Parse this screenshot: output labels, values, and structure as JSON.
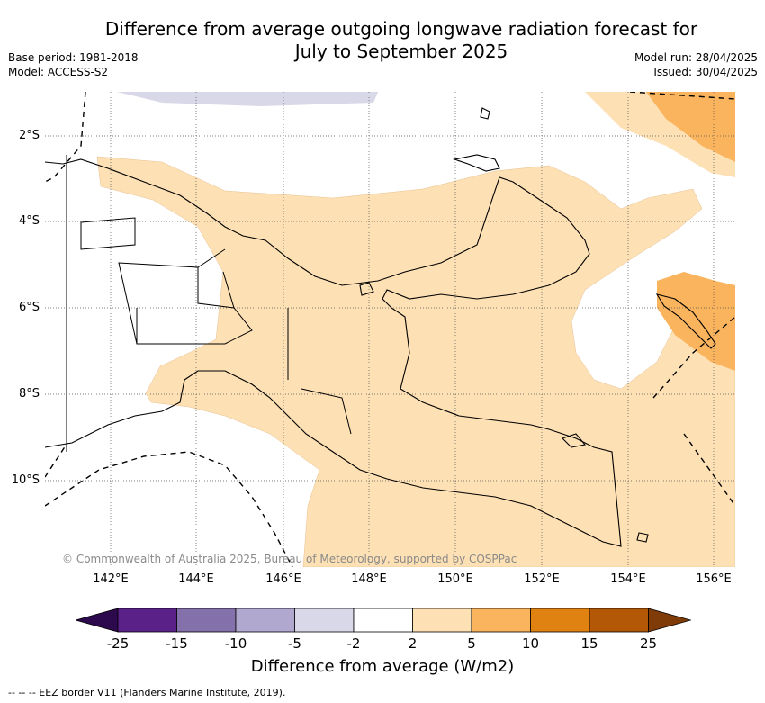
{
  "header": {
    "title_line1": "Difference from average outgoing longwave radiation forecast for",
    "title_line2": "July to September 2025",
    "base_period": "Base period: 1981-2018",
    "model": "Model: ACCESS-S2",
    "model_run": "Model run: 28/04/2025",
    "issued": "Issued: 30/04/2025"
  },
  "map": {
    "lat_labels": [
      "2°S",
      "4°S",
      "6°S",
      "8°S",
      "10°S"
    ],
    "lon_labels": [
      "142°E",
      "144°E",
      "146°E",
      "148°E",
      "150°E",
      "152°E",
      "154°E",
      "156°E"
    ],
    "copyright": "© Commonwealth of Australia 2025, Bureau of Meteorology, supported by COSPPac",
    "colors": {
      "light_orange": "#fde0b4",
      "mid_orange": "#fbb45e",
      "light_lavender": "#d8d8e8",
      "coast": "#000000",
      "grid": "#555555"
    }
  },
  "legend": {
    "ticks": [
      "-25",
      "-15",
      "-10",
      "-5",
      "-2",
      "2",
      "5",
      "10",
      "15",
      "25"
    ],
    "colors": [
      "#2d0a4e",
      "#5a2288",
      "#8470aa",
      "#b1a8d0",
      "#d8d8e8",
      "#ffffff",
      "#fde0b4",
      "#fbb45e",
      "#e08212",
      "#b35806",
      "#7f3b08"
    ],
    "title": "Difference from average (W/m2)"
  },
  "footer": {
    "eez_note": "-- -- -- EEZ border V11 (Flanders Marine Institute, 2019)."
  }
}
